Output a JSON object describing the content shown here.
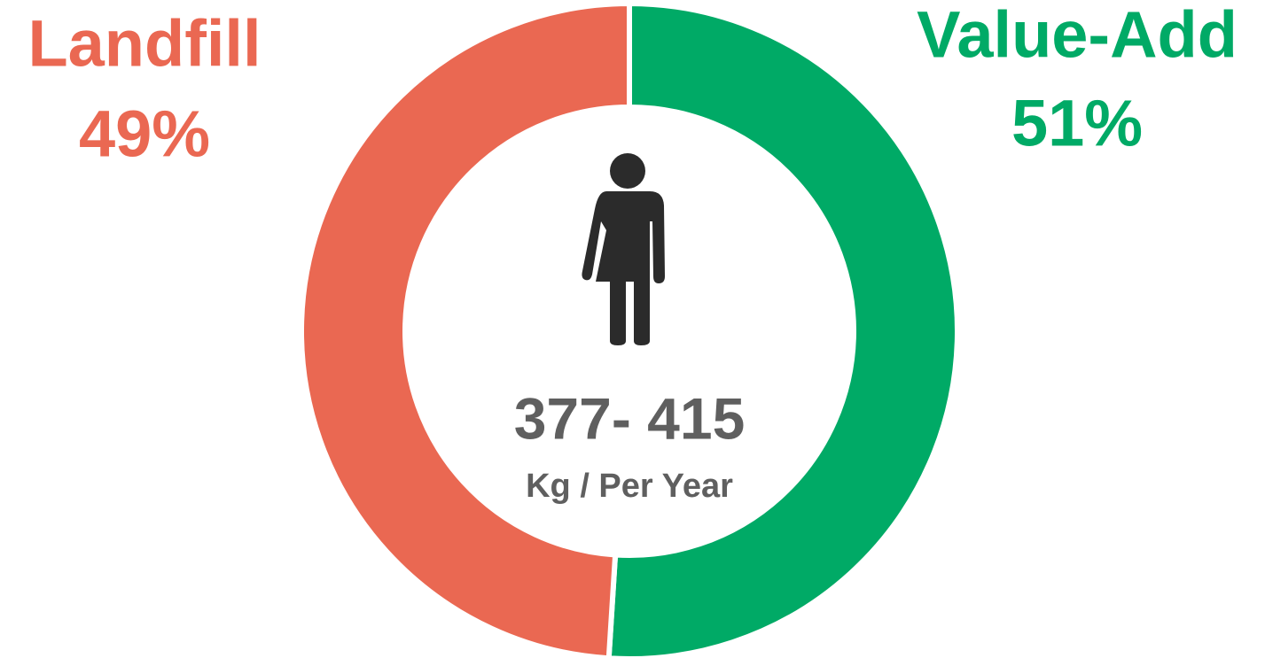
{
  "chart_data": {
    "type": "pie",
    "donut": true,
    "categories": [
      "Value-Add",
      "Landfill"
    ],
    "values": [
      51,
      49
    ],
    "value_labels": [
      "51%",
      "49%"
    ],
    "colors": [
      "#00aa66",
      "#ea6852"
    ],
    "annotations": [
      "377- 415",
      "Kg / Per Year"
    ]
  }
}
